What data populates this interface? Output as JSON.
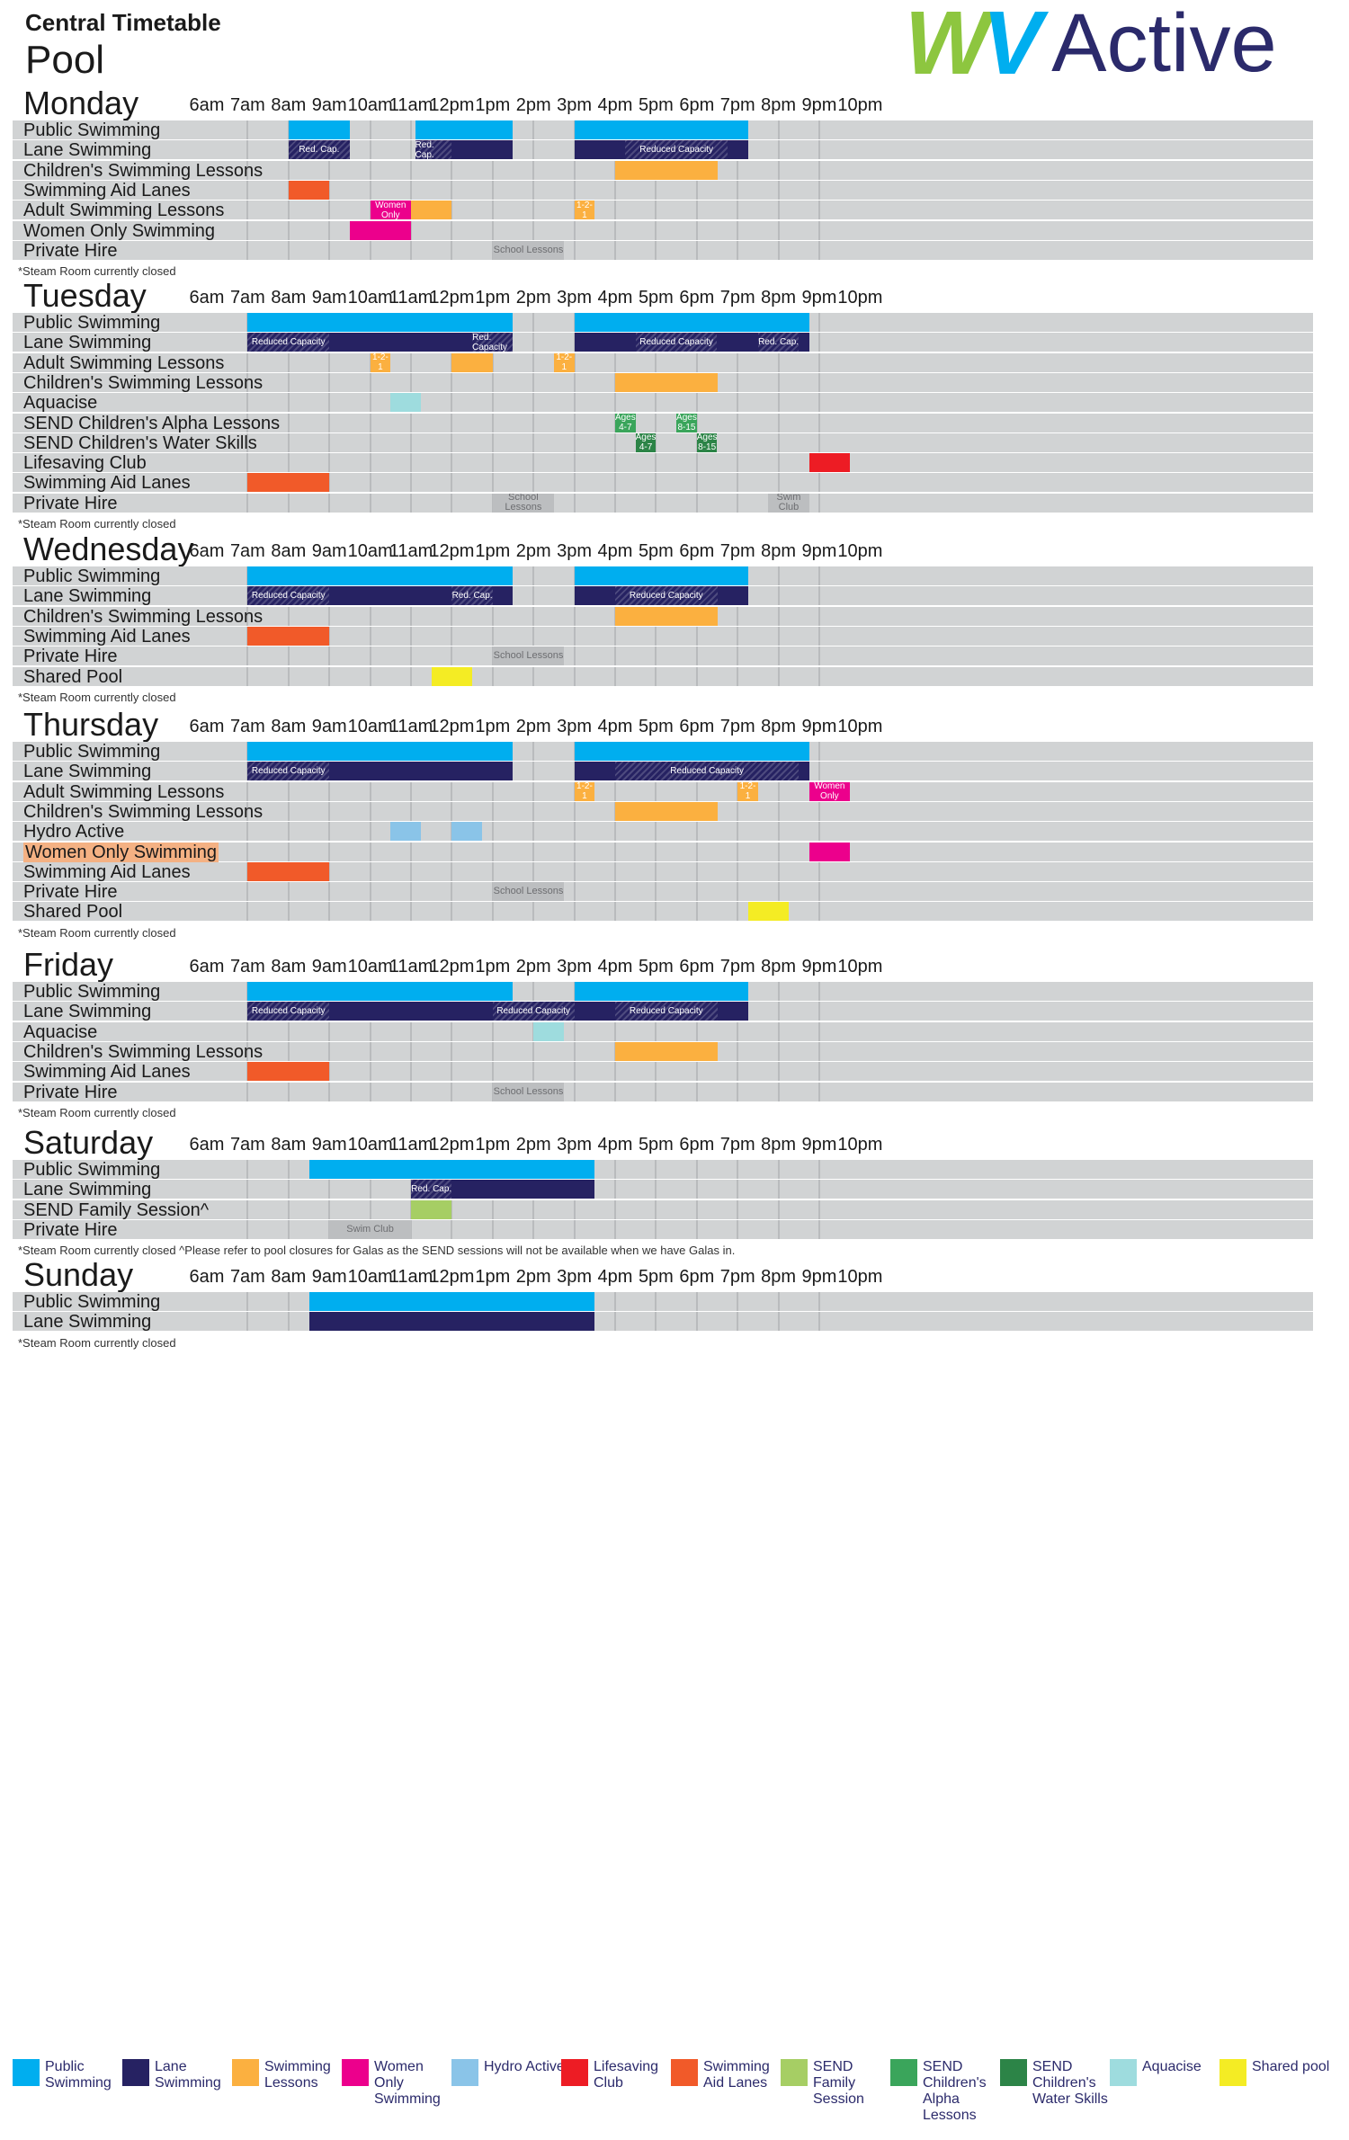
{
  "header": {
    "subtitle": "Central Timetable",
    "title": "Pool",
    "logo_text": "WV Active"
  },
  "hours": [
    "6am",
    "7am",
    "8am",
    "9am",
    "10am",
    "11am",
    "12pm",
    "1pm",
    "2pm",
    "3pm",
    "4pm",
    "5pm",
    "6pm",
    "7pm",
    "8pm",
    "9pm",
    "10pm"
  ],
  "colors": {
    "public": "#00aeef",
    "lane": "#262262",
    "lessons": "#fbb040",
    "women": "#ec008c",
    "hydro": "#8ac4e8",
    "lifesaving": "#ed1c24",
    "aid": "#f15a29",
    "send_family": "#a6ce64",
    "alpha": "#3aa55b",
    "water": "#2c8447",
    "aquacise": "#9edcde",
    "shared": "#f4ec24",
    "private": "#bcbec0"
  },
  "days": [
    {
      "name": "Monday",
      "rows": [
        {
          "label": "Public Swimming",
          "blocks": [
            {
              "start": 8,
              "end": 9.5,
              "kind": "public"
            },
            {
              "start": 11.1,
              "end": 13.5,
              "kind": "public"
            },
            {
              "start": 15,
              "end": 19.25,
              "kind": "public"
            }
          ]
        },
        {
          "label": "Lane Swimming",
          "blocks": [
            {
              "start": 8,
              "end": 9.5,
              "kind": "lane",
              "hatch": [
                {
                  "start": 8,
                  "end": 9.5,
                  "text": "Red. Cap."
                }
              ]
            },
            {
              "start": 11.1,
              "end": 13.5,
              "kind": "lane",
              "hatch": [
                {
                  "start": 11.1,
                  "end": 12,
                  "text": "Red. Cap."
                }
              ]
            },
            {
              "start": 15,
              "end": 19.25,
              "kind": "lane",
              "hatch": [
                {
                  "start": 16.25,
                  "end": 18.75,
                  "text": "Reduced Capacity"
                }
              ]
            }
          ]
        },
        {
          "label": "Children's Swimming Lessons",
          "blocks": [
            {
              "start": 16,
              "end": 18.5,
              "kind": "lessons"
            }
          ]
        },
        {
          "label": "Swimming Aid Lanes",
          "blocks": [
            {
              "start": 8,
              "end": 9,
              "kind": "aid"
            }
          ]
        },
        {
          "label": "Adult Swimming Lessons",
          "blocks": [
            {
              "start": 10,
              "end": 11,
              "kind": "women",
              "text": "Women Only"
            },
            {
              "start": 11,
              "end": 12,
              "kind": "lessons"
            },
            {
              "start": 15,
              "end": 15.5,
              "kind": "lessons",
              "text": "1-2-1"
            }
          ]
        },
        {
          "label": "Women Only Swimming",
          "blocks": [
            {
              "start": 9.5,
              "end": 11,
              "kind": "women"
            }
          ]
        },
        {
          "label": "Private Hire",
          "blocks": [
            {
              "start": 13,
              "end": 14.75,
              "kind": "private",
              "text": "School Lessons"
            }
          ]
        }
      ],
      "note": "*Steam Room currently closed"
    },
    {
      "name": "Tuesday",
      "rows": [
        {
          "label": "Public Swimming",
          "blocks": [
            {
              "start": 7,
              "end": 13.5,
              "kind": "public"
            },
            {
              "start": 15,
              "end": 20.75,
              "kind": "public"
            }
          ]
        },
        {
          "label": "Lane Swimming",
          "blocks": [
            {
              "start": 7,
              "end": 13.5,
              "kind": "lane",
              "hatch": [
                {
                  "start": 7,
                  "end": 9,
                  "text": "Reduced Capacity"
                },
                {
                  "start": 12.5,
                  "end": 13.5,
                  "text": "Red. Capacity"
                }
              ]
            },
            {
              "start": 15,
              "end": 20.75,
              "kind": "lane",
              "hatch": [
                {
                  "start": 16.5,
                  "end": 18.5,
                  "text": "Reduced Capacity"
                },
                {
                  "start": 19.5,
                  "end": 20.5,
                  "text": "Red. Cap."
                }
              ]
            }
          ]
        },
        {
          "label": "Adult Swimming Lessons",
          "blocks": [
            {
              "start": 10,
              "end": 10.5,
              "kind": "lessons",
              "text": "1-2-1"
            },
            {
              "start": 12,
              "end": 13,
              "kind": "lessons"
            },
            {
              "start": 14.5,
              "end": 15,
              "kind": "lessons",
              "text": "1-2-1"
            }
          ]
        },
        {
          "label": "Children's Swimming Lessons",
          "blocks": [
            {
              "start": 16,
              "end": 18.5,
              "kind": "lessons"
            }
          ]
        },
        {
          "label": "Aquacise",
          "blocks": [
            {
              "start": 10.5,
              "end": 11.25,
              "kind": "aquacise"
            }
          ]
        },
        {
          "label": "SEND Children's Alpha Lessons",
          "blocks": [
            {
              "start": 16,
              "end": 16.5,
              "kind": "alpha",
              "text": "Ages 4-7"
            },
            {
              "start": 17.5,
              "end": 18,
              "kind": "alpha",
              "text": "Ages 8-15"
            }
          ]
        },
        {
          "label": "SEND Children's Water Skills",
          "blocks": [
            {
              "start": 16.5,
              "end": 17,
              "kind": "water",
              "text": "Ages 4-7"
            },
            {
              "start": 18,
              "end": 18.5,
              "kind": "water",
              "text": "Ages 8-15"
            }
          ]
        },
        {
          "label": "Lifesaving Club",
          "blocks": [
            {
              "start": 20.75,
              "end": 21.75,
              "kind": "lifesaving"
            }
          ]
        },
        {
          "label": "Swimming Aid Lanes",
          "blocks": [
            {
              "start": 7,
              "end": 9,
              "kind": "aid"
            }
          ]
        },
        {
          "label": "Private Hire",
          "blocks": [
            {
              "start": 13,
              "end": 14.5,
              "kind": "private",
              "text": "School Lessons"
            },
            {
              "start": 19.75,
              "end": 20.75,
              "kind": "private",
              "text": "Swim Club"
            }
          ]
        }
      ],
      "note": "*Steam Room currently closed"
    },
    {
      "name": "Wednesday",
      "rows": [
        {
          "label": "Public Swimming",
          "blocks": [
            {
              "start": 7,
              "end": 13.5,
              "kind": "public"
            },
            {
              "start": 15,
              "end": 19.25,
              "kind": "public"
            }
          ]
        },
        {
          "label": "Lane Swimming",
          "blocks": [
            {
              "start": 7,
              "end": 13.5,
              "kind": "lane",
              "hatch": [
                {
                  "start": 7,
                  "end": 9,
                  "text": "Reduced Capacity"
                },
                {
                  "start": 12,
                  "end": 13,
                  "text": "Red. Cap."
                }
              ]
            },
            {
              "start": 15,
              "end": 19.25,
              "kind": "lane",
              "hatch": [
                {
                  "start": 16,
                  "end": 18.5,
                  "text": "Reduced Capacity"
                }
              ]
            }
          ]
        },
        {
          "label": "Children's Swimming Lessons",
          "blocks": [
            {
              "start": 16,
              "end": 18.5,
              "kind": "lessons"
            }
          ]
        },
        {
          "label": "Swimming Aid Lanes",
          "blocks": [
            {
              "start": 7,
              "end": 9,
              "kind": "aid"
            }
          ]
        },
        {
          "label": "Private Hire",
          "blocks": [
            {
              "start": 13,
              "end": 14.75,
              "kind": "private",
              "text": "School Lessons"
            }
          ]
        },
        {
          "label": "Shared Pool",
          "blocks": [
            {
              "start": 11.5,
              "end": 12.5,
              "kind": "shared"
            }
          ]
        }
      ],
      "note": "*Steam Room currently closed"
    },
    {
      "name": "Thursday",
      "rows": [
        {
          "label": "Public Swimming",
          "blocks": [
            {
              "start": 7,
              "end": 13.5,
              "kind": "public"
            },
            {
              "start": 15,
              "end": 20.75,
              "kind": "public"
            }
          ]
        },
        {
          "label": "Lane Swimming",
          "blocks": [
            {
              "start": 7,
              "end": 13.5,
              "kind": "lane",
              "hatch": [
                {
                  "start": 7,
                  "end": 9,
                  "text": "Reduced Capacity"
                }
              ]
            },
            {
              "start": 15,
              "end": 20.75,
              "kind": "lane",
              "hatch": [
                {
                  "start": 16,
                  "end": 20.5,
                  "text": "Reduced Capacity"
                }
              ]
            }
          ]
        },
        {
          "label": "Adult Swimming Lessons",
          "blocks": [
            {
              "start": 15,
              "end": 15.5,
              "kind": "lessons",
              "text": "1-2-1"
            },
            {
              "start": 19,
              "end": 19.5,
              "kind": "lessons",
              "text": "1-2-1"
            },
            {
              "start": 20.75,
              "end": 21.75,
              "kind": "women",
              "text": "Women Only"
            }
          ]
        },
        {
          "label": "Children's Swimming Lessons",
          "blocks": [
            {
              "start": 16,
              "end": 18.5,
              "kind": "lessons"
            }
          ]
        },
        {
          "label": "Hydro Active",
          "blocks": [
            {
              "start": 10.5,
              "end": 11.25,
              "kind": "hydro"
            },
            {
              "start": 12,
              "end": 12.75,
              "kind": "hydro"
            }
          ]
        },
        {
          "label": "Women Only Swimming",
          "highlight": true,
          "blocks": [
            {
              "start": 20.75,
              "end": 21.75,
              "kind": "women"
            }
          ]
        },
        {
          "label": "Swimming Aid Lanes",
          "blocks": [
            {
              "start": 7,
              "end": 9,
              "kind": "aid"
            }
          ]
        },
        {
          "label": "Private Hire",
          "blocks": [
            {
              "start": 13,
              "end": 14.75,
              "kind": "private",
              "text": "School Lessons"
            }
          ]
        },
        {
          "label": "Shared Pool",
          "blocks": [
            {
              "start": 19.25,
              "end": 20.25,
              "kind": "shared"
            }
          ]
        }
      ],
      "note": "*Steam Room currently closed"
    },
    {
      "name": "Friday",
      "rows": [
        {
          "label": "Public Swimming",
          "blocks": [
            {
              "start": 7,
              "end": 13.5,
              "kind": "public"
            },
            {
              "start": 15,
              "end": 19.25,
              "kind": "public"
            }
          ]
        },
        {
          "label": "Lane Swimming",
          "blocks": [
            {
              "start": 7,
              "end": 19.25,
              "kind": "lane",
              "hatch": [
                {
                  "start": 7,
                  "end": 9,
                  "text": "Reduced Capacity"
                },
                {
                  "start": 13,
                  "end": 15,
                  "text": "Reduced Capacity"
                },
                {
                  "start": 16,
                  "end": 18.5,
                  "text": "Reduced Capacity"
                }
              ]
            }
          ]
        },
        {
          "label": "Aquacise",
          "blocks": [
            {
              "start": 14,
              "end": 14.75,
              "kind": "aquacise"
            }
          ]
        },
        {
          "label": "Children's Swimming Lessons",
          "blocks": [
            {
              "start": 16,
              "end": 18.5,
              "kind": "lessons"
            }
          ]
        },
        {
          "label": "Swimming Aid Lanes",
          "blocks": [
            {
              "start": 7,
              "end": 9,
              "kind": "aid"
            }
          ]
        },
        {
          "label": "Private Hire",
          "blocks": [
            {
              "start": 13,
              "end": 14.75,
              "kind": "private",
              "text": "School Lessons"
            }
          ]
        }
      ],
      "note": "*Steam Room currently closed"
    },
    {
      "name": "Saturday",
      "rows": [
        {
          "label": "Public Swimming",
          "blocks": [
            {
              "start": 8.5,
              "end": 15.5,
              "kind": "public"
            }
          ]
        },
        {
          "label": "Lane Swimming",
          "blocks": [
            {
              "start": 11,
              "end": 15.5,
              "kind": "lane",
              "hatch": [
                {
                  "start": 11,
                  "end": 12,
                  "text": "Red. Cap."
                }
              ]
            }
          ]
        },
        {
          "label": "SEND Family Session^",
          "blocks": [
            {
              "start": 11,
              "end": 12,
              "kind": "send_family"
            }
          ]
        },
        {
          "label": "Private Hire",
          "blocks": [
            {
              "start": 9,
              "end": 11,
              "kind": "private",
              "text": "Swim Club"
            }
          ]
        }
      ],
      "note": "*Steam Room currently closed    ^Please refer to pool closures for Galas as the SEND sessions will not be available when we have Galas in."
    },
    {
      "name": "Sunday",
      "rows": [
        {
          "label": "Public Swimming",
          "blocks": [
            {
              "start": 8.5,
              "end": 15.5,
              "kind": "public"
            }
          ]
        },
        {
          "label": "Lane Swimming",
          "blocks": [
            {
              "start": 8.5,
              "end": 15.5,
              "kind": "lane"
            }
          ]
        }
      ],
      "note": "*Steam Room currently closed"
    }
  ],
  "legend": [
    {
      "kind": "public",
      "label": "Public Swimming"
    },
    {
      "kind": "lane",
      "label": "Lane Swimming"
    },
    {
      "kind": "lessons",
      "label": "Swimming Lessons"
    },
    {
      "kind": "women",
      "label": "Women Only Swimming"
    },
    {
      "kind": "hydro",
      "label": "Hydro Active"
    },
    {
      "kind": "lifesaving",
      "label": "Lifesaving Club"
    },
    {
      "kind": "aid",
      "label": "Swimming Aid Lanes"
    },
    {
      "kind": "send_family",
      "label": "SEND Family Session"
    },
    {
      "kind": "alpha",
      "label": "SEND Children's Alpha Lessons"
    },
    {
      "kind": "water",
      "label": "SEND Children's Water Skills"
    },
    {
      "kind": "aquacise",
      "label": "Aquacise"
    },
    {
      "kind": "shared",
      "label": "Shared pool"
    }
  ]
}
